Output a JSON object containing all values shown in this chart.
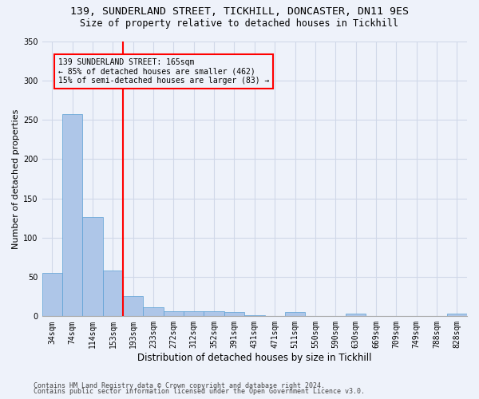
{
  "title_line1": "139, SUNDERLAND STREET, TICKHILL, DONCASTER, DN11 9ES",
  "title_line2": "Size of property relative to detached houses in Tickhill",
  "xlabel": "Distribution of detached houses by size in Tickhill",
  "ylabel": "Number of detached properties",
  "footer_line1": "Contains HM Land Registry data © Crown copyright and database right 2024.",
  "footer_line2": "Contains public sector information licensed under the Open Government Licence v3.0.",
  "bar_labels": [
    "34sqm",
    "74sqm",
    "114sqm",
    "153sqm",
    "193sqm",
    "233sqm",
    "272sqm",
    "312sqm",
    "352sqm",
    "391sqm",
    "431sqm",
    "471sqm",
    "511sqm",
    "550sqm",
    "590sqm",
    "630sqm",
    "669sqm",
    "709sqm",
    "749sqm",
    "788sqm",
    "828sqm"
  ],
  "bar_values": [
    55,
    257,
    126,
    58,
    26,
    12,
    6,
    6,
    6,
    5,
    1,
    0,
    5,
    0,
    0,
    3,
    0,
    0,
    0,
    0,
    3
  ],
  "bar_color": "#aec6e8",
  "bar_edge_color": "#5a9fd4",
  "grid_color": "#d0d8e8",
  "vline_color": "red",
  "annotation_text": "139 SUNDERLAND STREET: 165sqm\n← 85% of detached houses are smaller (462)\n15% of semi-detached houses are larger (83) →",
  "annotation_box_color": "red",
  "ylim": [
    0,
    350
  ],
  "yticks": [
    0,
    50,
    100,
    150,
    200,
    250,
    300,
    350
  ],
  "bg_color": "#eef2fa",
  "title1_fontsize": 9.5,
  "title2_fontsize": 8.5,
  "ylabel_fontsize": 8,
  "xlabel_fontsize": 8.5,
  "tick_fontsize": 7,
  "footer_fontsize": 6
}
